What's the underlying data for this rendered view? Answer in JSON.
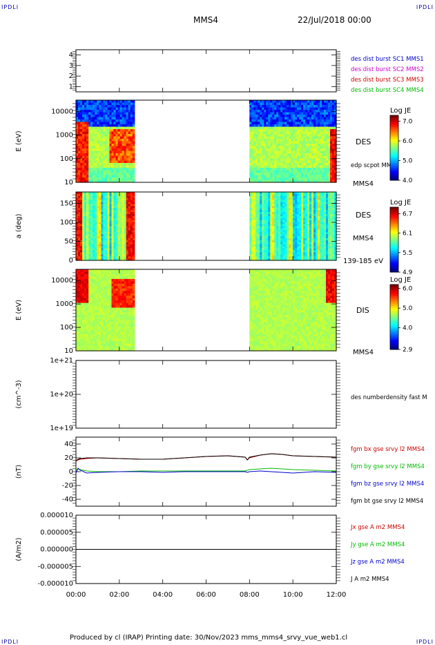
{
  "corners": {
    "tl": "IPDLI",
    "tr": "IPDLI",
    "bl": "IPDLI",
    "br": "IPDLI"
  },
  "header": {
    "spacecraft": "MMS4",
    "date": "22/Jul/2018 00:00"
  },
  "footer": {
    "text": "Produced by cl (IRAP)   Printing date: 30/Nov/2023   mms_mms4_srvy_vue_web1.cl"
  },
  "colors": {
    "red": "#cc0000",
    "green": "#00bb00",
    "blue": "#0000cc",
    "magenta": "#cc00cc",
    "black": "#000000"
  },
  "chart_data": [
    {
      "type": "line",
      "id": "burst",
      "x": [],
      "ylim": [
        0.5,
        4.5
      ],
      "yticks": [
        "1",
        "2",
        "3",
        "4"
      ],
      "legend": [
        {
          "name": "des dist burst SC1 MMS1",
          "color": "#0000cc"
        },
        {
          "name": "des dist burst SC2 MMS2",
          "color": "#cc00cc"
        },
        {
          "name": "des dist burst SC3 MMS3",
          "color": "#cc0000"
        },
        {
          "name": "des dist burst SC4 MMS4",
          "color": "#00bb00"
        }
      ]
    },
    {
      "type": "heatmap",
      "id": "des-energy",
      "ylabel": "E (eV)",
      "yscale": "log",
      "ylim": [
        10,
        30000
      ],
      "yticks": [
        "10",
        "100",
        "1000",
        "10000"
      ],
      "data_intervals": [
        [
          0,
          2.7
        ],
        [
          8.0,
          12.0
        ]
      ],
      "colorbar": {
        "title": "Log JE",
        "ticks": [
          "4.0",
          "5.0",
          "6.0",
          "7.0"
        ],
        "range": [
          4.0,
          7.3
        ]
      },
      "labels": {
        "species": "DES",
        "overlay": "edp scpot MMS4",
        "spacecraft": "MMS4"
      }
    },
    {
      "type": "heatmap",
      "id": "des-pitch",
      "ylabel": "a (deg)",
      "ylim": [
        0,
        180
      ],
      "yticks": [
        "0",
        "50",
        "100",
        "150"
      ],
      "data_intervals": [
        [
          0,
          2.7
        ],
        [
          8.0,
          12.0
        ]
      ],
      "colorbar": {
        "title": "Log JE",
        "ticks": [
          "4.9",
          "5.5",
          "6.1",
          "6.7"
        ],
        "range": [
          4.9,
          6.9
        ]
      },
      "labels": {
        "species": "DES",
        "spacecraft": "MMS4",
        "energy_range": "139-185 eV"
      }
    },
    {
      "type": "heatmap",
      "id": "dis-energy",
      "ylabel": "E (eV)",
      "yscale": "log",
      "ylim": [
        10,
        30000
      ],
      "yticks": [
        "10",
        "100",
        "1000",
        "10000"
      ],
      "data_intervals": [
        [
          0,
          2.7
        ],
        [
          8.0,
          12.0
        ]
      ],
      "colorbar": {
        "title": "Log JE",
        "ticks": [
          "2.9",
          "4.0",
          "5.0",
          "6.0"
        ],
        "range": [
          2.9,
          6.2
        ]
      },
      "labels": {
        "species": "DIS",
        "spacecraft": "MMS4"
      }
    },
    {
      "type": "line",
      "id": "density",
      "ylabel": "(cm^-3)",
      "yscale": "log",
      "ylim": [
        1e+19,
        1e+21
      ],
      "yticks": [
        "1e+19",
        "1e+20",
        "1e+21"
      ],
      "legend": [
        {
          "name": "des numberdensity fast M",
          "color": "#000000"
        }
      ]
    },
    {
      "type": "line",
      "id": "fgm",
      "ylabel": "(nT)",
      "ylim": [
        -50,
        50
      ],
      "yticks": [
        "-40",
        "-20",
        "0",
        "20",
        "40"
      ],
      "x": [
        0,
        0.1,
        0.2,
        0.5,
        1,
        2,
        3,
        4,
        5,
        6,
        7,
        7.8,
        7.9,
        8.0,
        8.5,
        9,
        9.5,
        10,
        11,
        12
      ],
      "series": [
        {
          "name": "fgm bx gse srvy l2 MMS4",
          "color": "#cc0000",
          "values": [
            15,
            17,
            18,
            19,
            20,
            19,
            18,
            18,
            20,
            22,
            23,
            21,
            17,
            20,
            24,
            26,
            25,
            23,
            22,
            21
          ]
        },
        {
          "name": "fgm by gse srvy l2 MMS4",
          "color": "#00bb00",
          "values": [
            3,
            4,
            3,
            1,
            0,
            0,
            1,
            1,
            1,
            1,
            1,
            1,
            2,
            3,
            4,
            5,
            4,
            3,
            2,
            1
          ]
        },
        {
          "name": "fgm bz gse srvy l2 MMS4",
          "color": "#0000cc",
          "values": [
            -2,
            5,
            2,
            -2,
            -1,
            0,
            0,
            -1,
            0,
            0,
            0,
            0,
            -1,
            0,
            1,
            0,
            -1,
            -2,
            0,
            -1
          ]
        },
        {
          "name": "fgm bt gse srvy l2 MMS4",
          "color": "#000000",
          "values": [
            16,
            18,
            19,
            20,
            20,
            19,
            18,
            18,
            20,
            22,
            23,
            21,
            17,
            21,
            24,
            26,
            25,
            23,
            22,
            21
          ]
        }
      ]
    },
    {
      "type": "line",
      "id": "current",
      "ylabel": "(A/m2)",
      "ylim": [
        -1e-05,
        1e-05
      ],
      "yticks": [
        "-0.000010",
        "-0.000005",
        "0.000000",
        "0.000005",
        "0.000010"
      ],
      "x": [
        "00:00",
        "02:00",
        "04:00",
        "06:00",
        "08:00",
        "10:00",
        "12:00"
      ],
      "series": [
        {
          "name": "J A m2 MMS4",
          "color": "#000000",
          "values": [
            0,
            0,
            0,
            0,
            0,
            0,
            0
          ]
        }
      ],
      "legend": [
        {
          "name": "Jx gse A m2 MMS4",
          "color": "#cc0000"
        },
        {
          "name": "Jy gse A m2 MMS4",
          "color": "#00bb00"
        },
        {
          "name": "Jz gse A m2 MMS4",
          "color": "#0000cc"
        },
        {
          "name": "J A m2 MMS4",
          "color": "#000000"
        }
      ]
    }
  ],
  "time_axis": {
    "range": [
      0,
      12
    ],
    "ticks": [
      "00:00",
      "02:00",
      "04:00",
      "06:00",
      "08:00",
      "10:00",
      "12:00"
    ]
  }
}
